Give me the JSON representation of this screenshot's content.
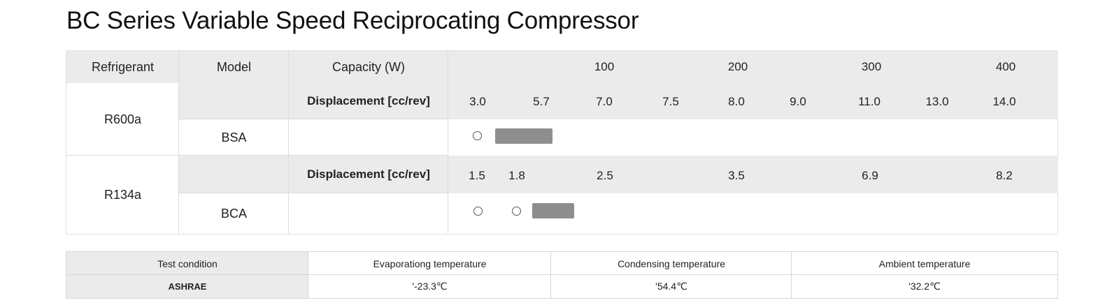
{
  "title": "BC Series Variable Speed Reciprocating Compressor",
  "header": {
    "refrigerant": "Refrigerant",
    "model": "Model",
    "capacity": "Capacity (W)",
    "ticks": [
      "100",
      "200",
      "300",
      "400"
    ]
  },
  "rows": [
    {
      "refrigerant": "R600a",
      "displacement_label": "Displacement [cc/rev]",
      "displacement_values": [
        "3.0",
        "5.7",
        "7.0",
        "7.5",
        "8.0",
        "9.0",
        "11.0",
        "13.0",
        "14.0"
      ],
      "model": "BSA",
      "markers": [
        "circle",
        "bar"
      ]
    },
    {
      "refrigerant": "R134a",
      "displacement_label": "Displacement [cc/rev]",
      "displacement_values": [
        "1.5",
        "1.8",
        "2.5",
        "3.5",
        "6.9",
        "8.2"
      ],
      "model": "BCA",
      "markers": [
        "circle",
        "circle",
        "bar"
      ]
    }
  ],
  "conditions": {
    "headers": [
      "Test condition",
      "Evaporationg temperature",
      "Condensing temperature",
      "Ambient temperature"
    ],
    "values": [
      "ASHRAE",
      "'-23.3℃",
      "'54.4℃",
      "'32.2℃"
    ]
  },
  "colors": {
    "header_bg": "#ebebeb",
    "bar": "#8e8e8e",
    "border": "#dcdcdc"
  }
}
